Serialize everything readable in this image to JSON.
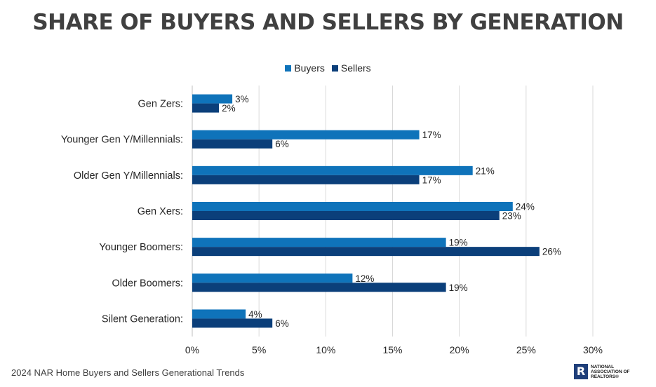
{
  "chart_data": {
    "type": "bar",
    "orientation": "horizontal",
    "title": "SHARE OF BUYERS AND SELLERS BY GENERATION",
    "categories": [
      "Gen Zers:",
      "Younger Gen Y/Millennials:",
      "Older Gen Y/Millennials:",
      "Gen Xers:",
      "Younger Boomers:",
      "Older Boomers:",
      "Silent Generation:"
    ],
    "series": [
      {
        "name": "Buyers",
        "values": [
          3,
          17,
          21,
          24,
          19,
          12,
          4
        ],
        "labels": [
          "3%",
          "17%",
          "21%",
          "24%",
          "19%",
          "12%",
          "4%"
        ],
        "color": "#0f73ba"
      },
      {
        "name": "Sellers",
        "values": [
          2,
          6,
          17,
          23,
          26,
          19,
          6
        ],
        "labels": [
          "2%",
          "6%",
          "17%",
          "23%",
          "26%",
          "19%",
          "6%"
        ],
        "color": "#0b3f7a"
      }
    ],
    "xlim": [
      0,
      30
    ],
    "xticks": [
      "0%",
      "5%",
      "10%",
      "15%",
      "20%",
      "25%",
      "30%"
    ],
    "grid": true,
    "legend_position": "top-center"
  },
  "footer": {
    "source": "2024 NAR Home Buyers and Sellers Generational Trends",
    "logo_mark": "R",
    "logo_text": "NATIONAL ASSOCIATION OF REALTORS®"
  }
}
